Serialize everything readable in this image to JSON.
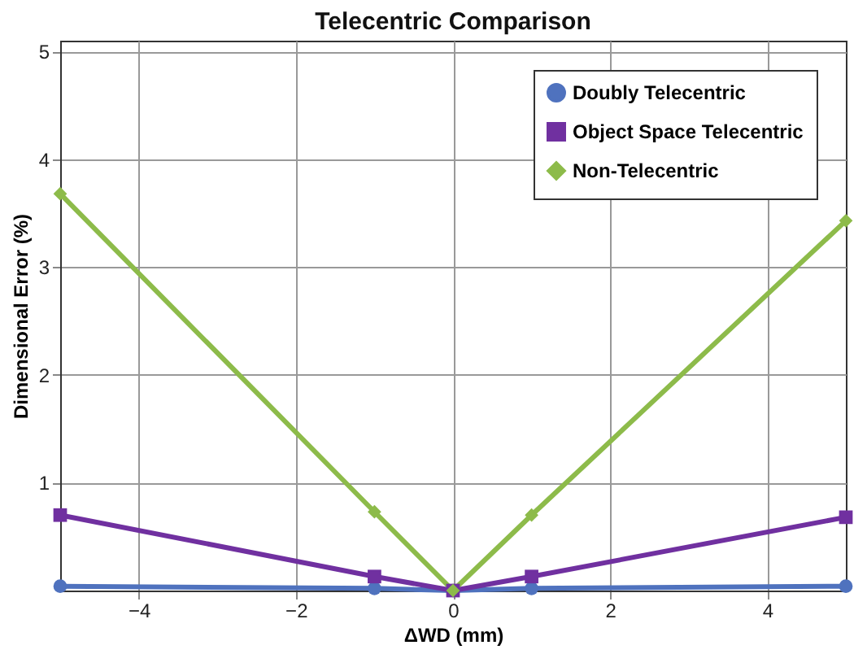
{
  "chart_data": {
    "type": "line",
    "title": "Telecentric Comparison",
    "xlabel": "ΔWD (mm)",
    "ylabel": "Dimensional Error (%)",
    "x": [
      -5,
      -1,
      0,
      1,
      5
    ],
    "series": [
      {
        "name": "Doubly Telecentric",
        "color": "#4f72be",
        "marker": "circle",
        "values": [
          0.04,
          0.02,
          0,
          0.02,
          0.04
        ]
      },
      {
        "name": "Object Space Telecentric",
        "color": "#7030a0",
        "marker": "square",
        "values": [
          0.7,
          0.13,
          0,
          0.13,
          0.68
        ]
      },
      {
        "name": "Non-Telecentric",
        "color": "#8dbb4a",
        "marker": "diamond",
        "values": [
          3.68,
          0.73,
          0,
          0.7,
          3.43
        ]
      }
    ],
    "xlim": [
      -5,
      5
    ],
    "xticks": [
      -4,
      -2,
      0,
      2,
      4
    ],
    "ylim": [
      0,
      5.1
    ],
    "yticks": [
      1,
      2,
      3,
      4,
      5
    ],
    "grid": true,
    "legend": "top right",
    "line_style": "solid"
  }
}
